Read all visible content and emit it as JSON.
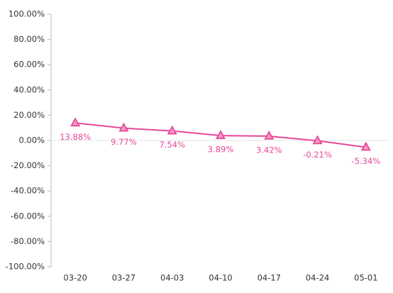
{
  "chart_data": {
    "type": "line",
    "categories": [
      "03-20",
      "03-27",
      "04-03",
      "04-10",
      "04-17",
      "04-24",
      "05-01"
    ],
    "series": [
      {
        "color": "#e8479a",
        "marker_fill": "#f49ac6",
        "values": [
          13.88,
          9.77,
          7.54,
          3.89,
          3.42,
          -0.21,
          -5.34
        ],
        "value_labels": [
          "13.88%",
          "9.77%",
          "7.54%",
          "3.89%",
          "3.42%",
          "-0.21%",
          "-5.34%"
        ]
      }
    ],
    "ylim": [
      -100,
      100
    ],
    "yticks": [
      {
        "value": -100,
        "label": "-100.00%"
      },
      {
        "value": -80,
        "label": "-80.00%"
      },
      {
        "value": -60,
        "label": "-60.00%"
      },
      {
        "value": -40,
        "label": "-40.00%"
      },
      {
        "value": -20,
        "label": "-20.00%"
      },
      {
        "value": 0,
        "label": "0.00%"
      },
      {
        "value": 20,
        "label": "20.00%"
      },
      {
        "value": 40,
        "label": "40.00%"
      },
      {
        "value": 60,
        "label": "60.00%"
      },
      {
        "value": 80,
        "label": "80.00%"
      },
      {
        "value": 100,
        "label": "100.00%"
      }
    ],
    "grid": false
  }
}
